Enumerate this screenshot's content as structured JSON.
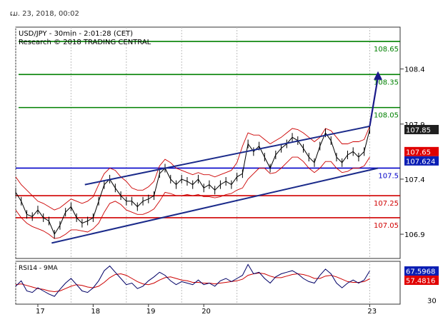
{
  "top_date": "ເມ. 23, 2018, 00:02",
  "chart_data": {
    "type": "line",
    "title": "USD/JPY - 30min - 2:01:28 (CET)",
    "subtitle": "Research © 2018 TRADING CENTRAL",
    "price_axis": {
      "ticks": [
        {
          "value": 108.4,
          "label": "108.4"
        },
        {
          "value": 107.9,
          "label": "107.9"
        },
        {
          "value": 107.4,
          "label": "107.4"
        },
        {
          "value": 106.9,
          "label": "106.9"
        }
      ],
      "ylim": [
        106.68,
        108.78
      ],
      "tags": [
        {
          "value": 107.85,
          "label": "107.85",
          "style": "dark"
        },
        {
          "value": 107.65,
          "label": "107.65",
          "style": "red"
        },
        {
          "value": 107.624,
          "label": "107.624",
          "style": "blue"
        }
      ]
    },
    "x_axis": {
      "ticks": [
        {
          "value": 17,
          "label": "17"
        },
        {
          "value": 18,
          "label": "18"
        },
        {
          "value": 19,
          "label": "19"
        },
        {
          "value": 20,
          "label": "20"
        },
        {
          "value": 23,
          "label": "23"
        }
      ],
      "xlim": [
        16.6,
        23.55
      ],
      "gridlines": [
        16.6,
        17.6,
        18.6,
        19.6,
        20.6,
        23.0
      ]
    },
    "levels": [
      {
        "value": 108.65,
        "label": "108.65",
        "color": "#008000"
      },
      {
        "value": 108.35,
        "label": "108.35",
        "color": "#008000"
      },
      {
        "value": 108.05,
        "label": "108.05",
        "color": "#008000"
      },
      {
        "value": 107.5,
        "label": "107.5",
        "color": "#0000c8"
      },
      {
        "value": 107.25,
        "label": "107.25",
        "color": "#d00000"
      },
      {
        "value": 107.05,
        "label": "107.05",
        "color": "#d00000"
      }
    ],
    "channel": {
      "upper": {
        "x": [
          17.85,
          23.0
        ],
        "y": [
          107.35,
          107.88
        ]
      },
      "lower": {
        "x": [
          17.25,
          23.15
        ],
        "y": [
          106.82,
          107.5
        ]
      }
    },
    "arrow": {
      "x": [
        23.0,
        23.15
      ],
      "y": [
        107.88,
        108.38
      ]
    },
    "price": {
      "x": [
        16.6,
        16.7,
        16.8,
        16.9,
        17.0,
        17.1,
        17.2,
        17.3,
        17.4,
        17.5,
        17.6,
        17.7,
        17.8,
        17.9,
        18.0,
        18.1,
        18.2,
        18.3,
        18.4,
        18.5,
        18.6,
        18.7,
        18.8,
        18.9,
        19.0,
        19.1,
        19.2,
        19.3,
        19.4,
        19.5,
        19.6,
        19.7,
        19.8,
        19.9,
        20.0,
        20.1,
        20.2,
        20.3,
        20.4,
        20.5,
        20.6,
        20.7,
        20.8,
        20.9,
        21.0,
        21.1,
        21.2,
        21.3,
        21.4,
        21.5,
        21.6,
        21.7,
        21.8,
        21.9,
        22.0,
        22.1,
        22.2,
        22.3,
        22.4,
        22.5,
        22.6,
        22.7,
        22.8,
        22.9,
        23.0
      ],
      "y": [
        107.28,
        107.2,
        107.08,
        107.06,
        107.12,
        107.05,
        107.02,
        106.9,
        106.98,
        107.1,
        107.15,
        107.05,
        107.0,
        107.02,
        107.05,
        107.2,
        107.35,
        107.4,
        107.32,
        107.25,
        107.2,
        107.2,
        107.15,
        107.2,
        107.22,
        107.25,
        107.45,
        107.5,
        107.4,
        107.35,
        107.4,
        107.38,
        107.35,
        107.4,
        107.32,
        107.35,
        107.3,
        107.35,
        107.38,
        107.35,
        107.42,
        107.45,
        107.72,
        107.65,
        107.7,
        107.6,
        107.5,
        107.62,
        107.68,
        107.72,
        107.78,
        107.75,
        107.68,
        107.6,
        107.55,
        107.7,
        107.82,
        107.75,
        107.6,
        107.55,
        107.62,
        107.65,
        107.6,
        107.65,
        107.85
      ]
    },
    "bands": {
      "upper": [
        107.42,
        107.35,
        107.3,
        107.25,
        107.2,
        107.18,
        107.15,
        107.12,
        107.14,
        107.18,
        107.22,
        107.2,
        107.18,
        107.2,
        107.24,
        107.35,
        107.45,
        107.5,
        107.48,
        107.42,
        107.38,
        107.32,
        107.3,
        107.3,
        107.33,
        107.38,
        107.52,
        107.58,
        107.55,
        107.5,
        107.48,
        107.46,
        107.44,
        107.46,
        107.44,
        107.44,
        107.42,
        107.44,
        107.46,
        107.48,
        107.55,
        107.7,
        107.82,
        107.8,
        107.8,
        107.76,
        107.72,
        107.75,
        107.78,
        107.82,
        107.86,
        107.85,
        107.82,
        107.78,
        107.74,
        107.78,
        107.86,
        107.84,
        107.78,
        107.72,
        107.72,
        107.74,
        107.74,
        107.76,
        107.88
      ],
      "lower": [
        107.12,
        107.05,
        107.0,
        106.97,
        106.95,
        106.93,
        106.9,
        106.86,
        106.87,
        106.9,
        106.94,
        106.94,
        106.93,
        106.92,
        106.95,
        107.0,
        107.1,
        107.18,
        107.2,
        107.17,
        107.12,
        107.1,
        107.08,
        107.08,
        107.1,
        107.13,
        107.2,
        107.28,
        107.27,
        107.25,
        107.25,
        107.26,
        107.25,
        107.26,
        107.24,
        107.24,
        107.23,
        107.24,
        107.26,
        107.27,
        107.3,
        107.32,
        107.4,
        107.45,
        107.5,
        107.5,
        107.45,
        107.46,
        107.5,
        107.55,
        107.6,
        107.6,
        107.56,
        107.5,
        107.46,
        107.5,
        107.56,
        107.56,
        107.5,
        107.46,
        107.47,
        107.5,
        107.5,
        107.52,
        107.6
      ]
    },
    "rsi": {
      "label": "RSI14 - 9MA",
      "ylim": [
        25,
        80
      ],
      "ticks": [
        {
          "value": 70,
          "label": "70"
        },
        {
          "value": 30,
          "label": "30"
        }
      ],
      "tags": [
        {
          "value": 67.5968,
          "label": "67.5968",
          "style": "blue"
        },
        {
          "value": 57.4816,
          "label": "57.4816",
          "style": "red"
        }
      ],
      "values": [
        48,
        55,
        42,
        40,
        46,
        42,
        38,
        35,
        44,
        52,
        58,
        50,
        42,
        40,
        46,
        55,
        68,
        74,
        66,
        58,
        50,
        52,
        45,
        48,
        55,
        60,
        66,
        62,
        55,
        50,
        54,
        52,
        50,
        56,
        50,
        52,
        48,
        55,
        58,
        54,
        58,
        62,
        76,
        64,
        66,
        58,
        52,
        60,
        64,
        66,
        68,
        64,
        58,
        54,
        52,
        62,
        70,
        64,
        52,
        46,
        52,
        56,
        52,
        56,
        67.6
      ],
      "ma": [
        50,
        51,
        49,
        47,
        45,
        44,
        42,
        41,
        42,
        45,
        48,
        50,
        49,
        47,
        46,
        48,
        53,
        59,
        63,
        64,
        62,
        58,
        54,
        51,
        50,
        52,
        56,
        59,
        60,
        58,
        56,
        55,
        53,
        53,
        52,
        52,
        51,
        52,
        53,
        54,
        55,
        57,
        62,
        64,
        65,
        64,
        61,
        59,
        59,
        61,
        63,
        64,
        63,
        61,
        58,
        58,
        61,
        62,
        60,
        57,
        54,
        53,
        53,
        54,
        57.5
      ]
    }
  }
}
